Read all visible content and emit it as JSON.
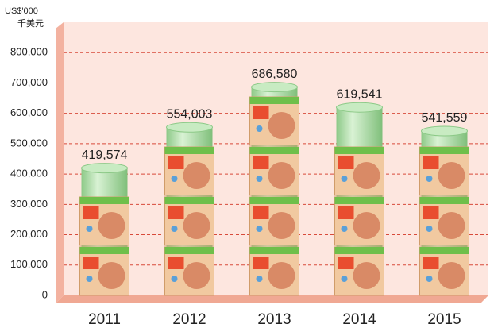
{
  "chart_data": {
    "type": "bar",
    "y_unit_labels": [
      "US$'000",
      "千美元"
    ],
    "categories": [
      "2011",
      "2012",
      "2013",
      "2014",
      "2015"
    ],
    "values": [
      419574,
      554003,
      686580,
      619541,
      541559
    ],
    "value_labels": [
      "419,574",
      "554,003",
      "686,580",
      "619,541",
      "541,559"
    ],
    "color": "#9fd59a",
    "ylim": [
      0,
      900000
    ],
    "yticks": [
      0,
      {
        "value": 100000,
        "label": "100,000"
      },
      {
        "value": 200000,
        "label": "200,000"
      },
      {
        "value": 300000,
        "label": "300,000"
      },
      {
        "value": 400000,
        "label": "400,000"
      },
      {
        "value": 500000,
        "label": "500,000"
      },
      {
        "value": 600000,
        "label": "600,000"
      },
      {
        "value": 700000,
        "label": "700,000"
      },
      {
        "value": 800000,
        "label": "800,000"
      }
    ],
    "grid": true
  }
}
